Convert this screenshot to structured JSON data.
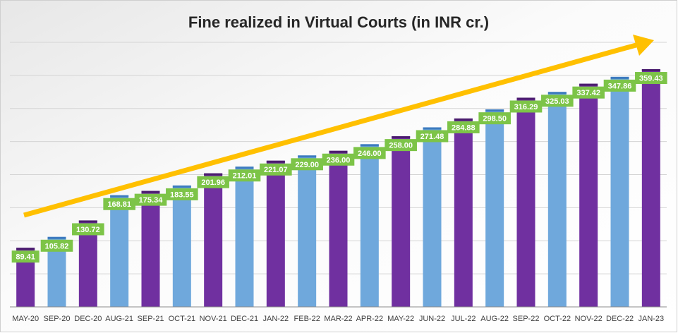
{
  "chart_data": {
    "type": "bar",
    "title": "Fine realized in Virtual Courts (in INR cr.)",
    "categories": [
      "MAY-20",
      "SEP-20",
      "DEC-20",
      "AUG-21",
      "SEP-21",
      "OCT-21",
      "NOV-21",
      "DEC-21",
      "JAN-22",
      "FEB-22",
      "MAR-22",
      "APR-22",
      "MAY-22",
      "JUN-22",
      "JUL-22",
      "AUG-22",
      "SEP-22",
      "OCT-22",
      "NOV-22",
      "DEC-22",
      "JAN-23"
    ],
    "values": [
      89.41,
      105.82,
      130.72,
      168.81,
      175.34,
      183.55,
      201.96,
      212.01,
      221.07,
      229.0,
      236.0,
      246.0,
      258.0,
      271.48,
      284.88,
      298.5,
      316.29,
      325.03,
      337.42,
      347.86,
      359.43
    ],
    "value_labels": [
      "89.41",
      "105.82",
      "130.72",
      "168.81",
      "175.34",
      "183.55",
      "201.96",
      "212.01",
      "221.07",
      "229.00",
      "236.00",
      "246.00",
      "258.00",
      "271.48",
      "284.88",
      "298.50",
      "316.29",
      "325.03",
      "337.42",
      "347.86",
      "359.43"
    ],
    "bar_colors": [
      "purple",
      "blue",
      "purple",
      "blue",
      "purple",
      "blue",
      "purple",
      "blue",
      "purple",
      "blue",
      "purple",
      "blue",
      "purple",
      "blue",
      "purple",
      "blue",
      "purple",
      "blue",
      "purple",
      "blue",
      "purple"
    ],
    "ylim": [
      0,
      400
    ],
    "y_tick_labels_shown": false,
    "grid": true,
    "legend": "none",
    "trend_arrow": true,
    "colors": {
      "purple": "#7030a0",
      "purple_cap": "#4b1d6e",
      "blue": "#6fa8dc",
      "blue_cap": "#3d7bbf",
      "label_bg": "#7dc448",
      "arrow": "#ffc000"
    }
  }
}
